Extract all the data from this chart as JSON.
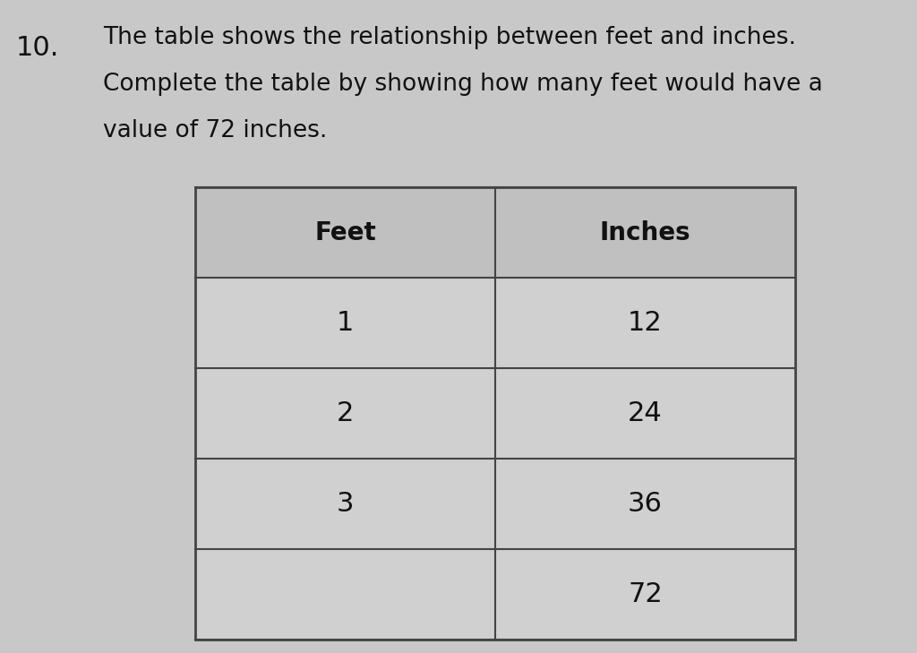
{
  "page_bg": "#c8c8c8",
  "title_number": "10.",
  "title_line1": "The table shows the relationship between feet and inches.",
  "title_line2": "Complete the table by showing how many feet would have a",
  "title_line3": "value of 72 inches.",
  "col_headers": [
    "Feet",
    "Inches"
  ],
  "rows": [
    [
      "1",
      "12"
    ],
    [
      "2",
      "24"
    ],
    [
      "3",
      "36"
    ],
    [
      "",
      "72"
    ]
  ],
  "header_color": "#c0c0c0",
  "cell_color": "#d0d0d0",
  "line_color": "#444444",
  "text_color": "#111111",
  "title_fontsize": 19,
  "number_fontsize": 22,
  "header_fontsize": 20
}
